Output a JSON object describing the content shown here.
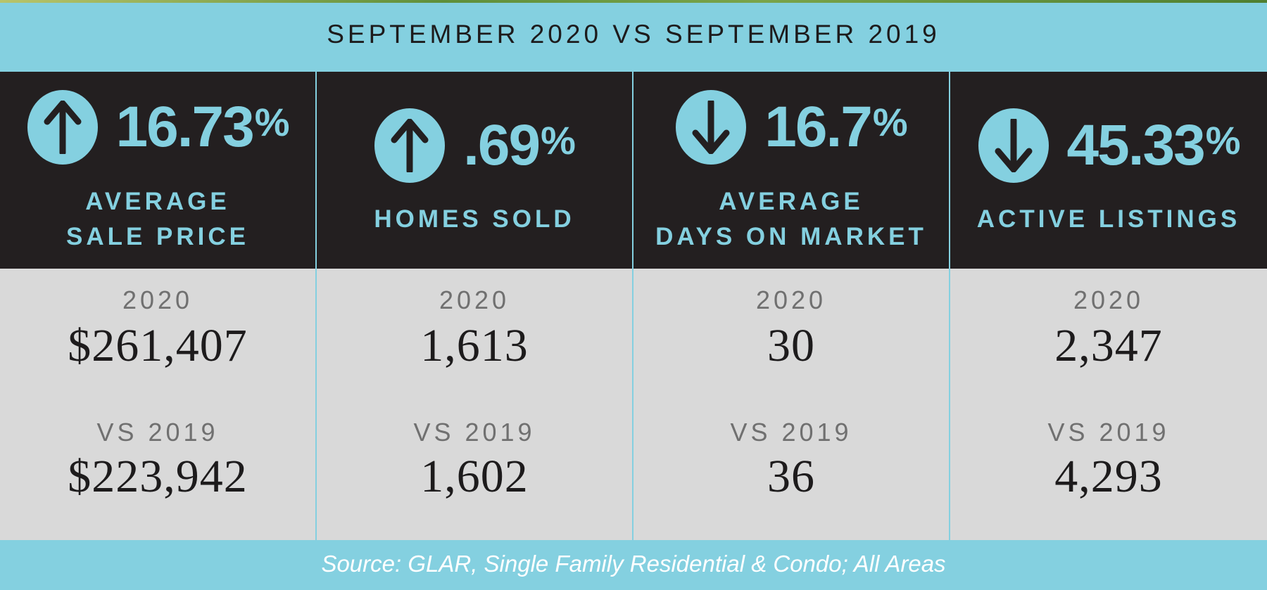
{
  "header": {
    "title": "SEPTEMBER 2020 VS SEPTEMBER 2019"
  },
  "accent_color": "#84d0e0",
  "dark_color": "#231f20",
  "stats": [
    {
      "direction": "up",
      "icon": "arrow-up-icon",
      "change": "16.73",
      "pct_sign": "%",
      "label_line1": "AVERAGE",
      "label_line2": "SALE PRICE",
      "current_label": "2020",
      "current_value": "$261,407",
      "previous_label": "VS 2019",
      "previous_value": "$223,942"
    },
    {
      "direction": "up",
      "icon": "arrow-up-icon",
      "change": ".69",
      "pct_sign": "%",
      "label_line1": "HOMES SOLD",
      "label_line2": "",
      "current_label": "2020",
      "current_value": "1,613",
      "previous_label": "VS 2019",
      "previous_value": "1,602"
    },
    {
      "direction": "down",
      "icon": "arrow-down-icon",
      "change": "16.7",
      "pct_sign": "%",
      "label_line1": "AVERAGE",
      "label_line2": "DAYS ON MARKET",
      "current_label": "2020",
      "current_value": "30",
      "previous_label": "VS 2019",
      "previous_value": "36"
    },
    {
      "direction": "down",
      "icon": "arrow-down-icon",
      "change": "45.33",
      "pct_sign": "%",
      "label_line1": "ACTIVE LISTINGS",
      "label_line2": "",
      "current_label": "2020",
      "current_value": "2,347",
      "previous_label": "VS 2019",
      "previous_value": "4,293"
    }
  ],
  "footer": {
    "source": "Source: GLAR, Single Family Residential & Condo; All Areas"
  }
}
